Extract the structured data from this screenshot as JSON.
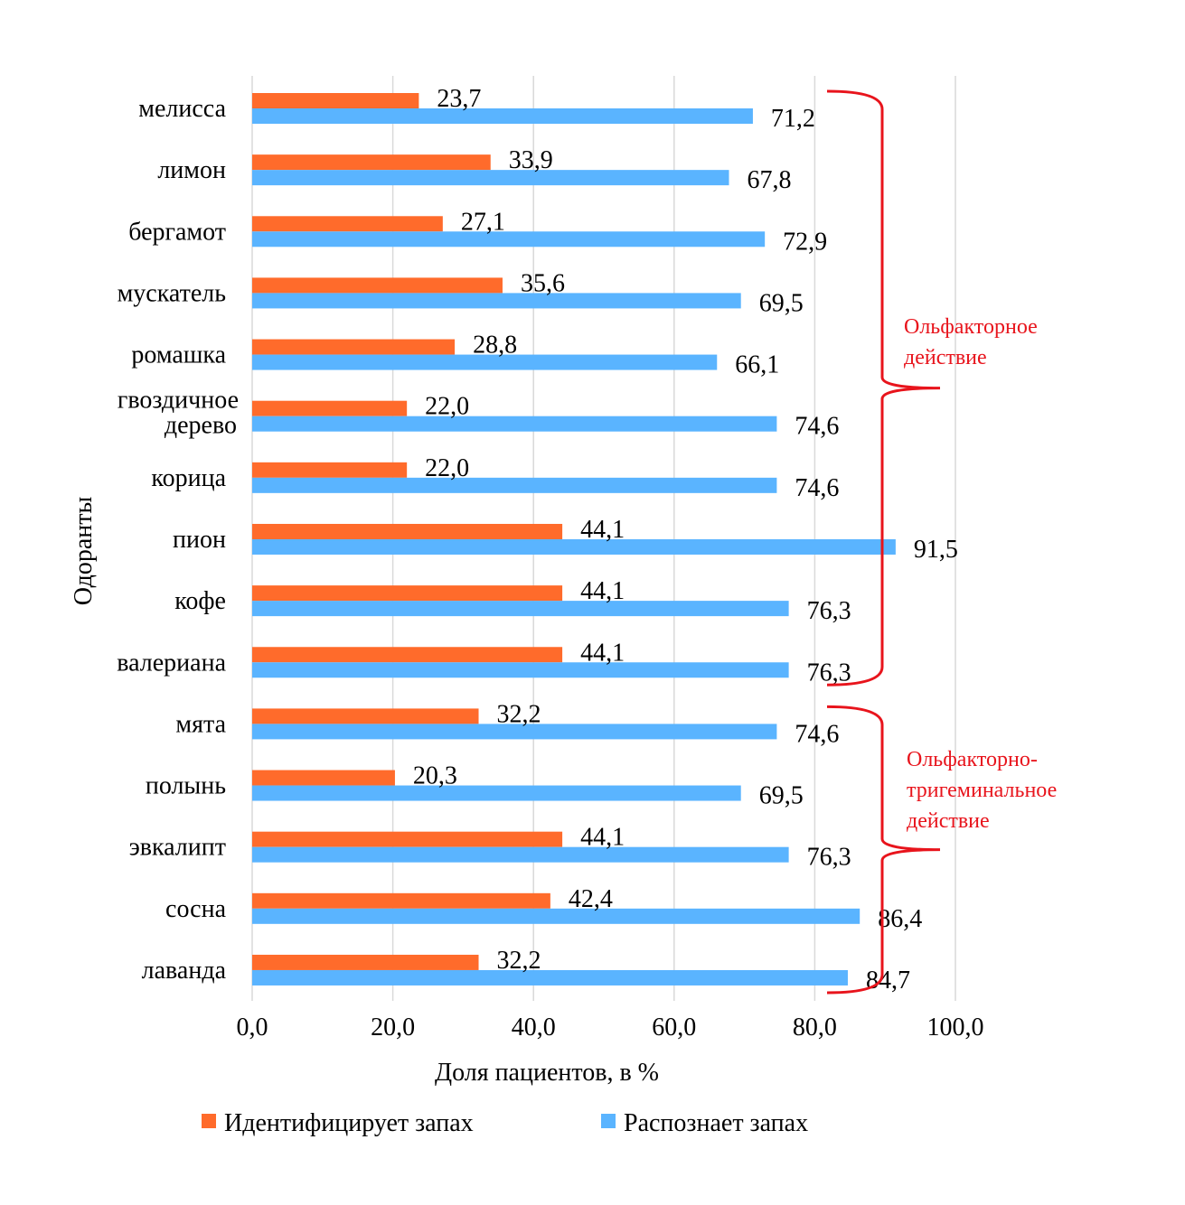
{
  "chart_data": {
    "type": "bar",
    "orientation": "horizontal",
    "title": "",
    "xlabel": "Доля пациентов, в %",
    "ylabel": "Одоранты",
    "xlim": [
      0,
      100
    ],
    "xticks": [
      "0,0",
      "20,0",
      "40,0",
      "60,0",
      "80,0",
      "100,0"
    ],
    "grid": true,
    "legend_position": "bottom",
    "categories": [
      [
        "мелисса"
      ],
      [
        "лимон"
      ],
      [
        "бергамот"
      ],
      [
        "мускатель"
      ],
      [
        "ромашка"
      ],
      [
        "гвоздичное",
        "дерево"
      ],
      [
        "корица"
      ],
      [
        "пион"
      ],
      [
        "кофе"
      ],
      [
        "валериана"
      ],
      [
        "мята"
      ],
      [
        "полынь"
      ],
      [
        "эвкалипт"
      ],
      [
        "сосна"
      ],
      [
        "лаванда"
      ]
    ],
    "series": [
      {
        "name": "Идентифицирует запах",
        "color": "#FF6B2B",
        "values": [
          23.7,
          33.9,
          27.1,
          35.6,
          28.8,
          22.0,
          22.0,
          44.1,
          44.1,
          44.1,
          32.2,
          20.3,
          44.1,
          42.4,
          32.2
        ],
        "labels": [
          "23,7",
          "33,9",
          "27,1",
          "35,6",
          "28,8",
          "22,0",
          "22,0",
          "44,1",
          "44,1",
          "44,1",
          "32,2",
          "20,3",
          "44,1",
          "42,4",
          "32,2"
        ]
      },
      {
        "name": "Распознает запах",
        "color": "#5AB4FF",
        "values": [
          71.2,
          67.8,
          72.9,
          69.5,
          66.1,
          74.6,
          74.6,
          91.5,
          76.3,
          76.3,
          74.6,
          69.5,
          76.3,
          86.4,
          84.7
        ],
        "labels": [
          "71,2",
          "67,8",
          "72,9",
          "69,5",
          "66,1",
          "74,6",
          "74,6",
          "91,5",
          "76,3",
          "76,3",
          "74,6",
          "69,5",
          "76,3",
          "86,4",
          "84,7"
        ]
      }
    ],
    "annotations": [
      {
        "lines": [
          "Ольфакторное",
          "действие"
        ],
        "color": "#E8141C",
        "from_category": 0,
        "to_category": 9
      },
      {
        "lines": [
          "Ольфакторно-",
          "тригеминальное",
          "действие"
        ],
        "color": "#E8141C",
        "from_category": 10,
        "to_category": 14
      }
    ]
  }
}
